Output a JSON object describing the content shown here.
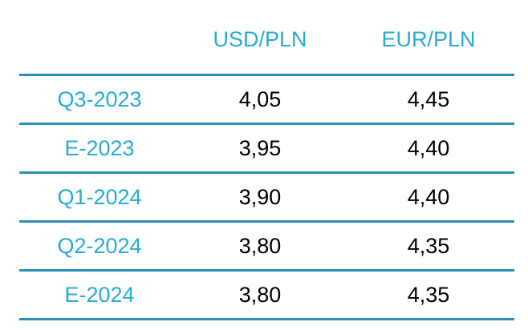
{
  "table": {
    "headers": [
      "",
      "USD/PLN",
      "EUR/PLN"
    ],
    "rows": [
      {
        "label": "Q3-2023",
        "usd_pln": "4,05",
        "eur_pln": "4,45"
      },
      {
        "label": "E-2023",
        "usd_pln": "3,95",
        "eur_pln": "4,40"
      },
      {
        "label": "Q1-2024",
        "usd_pln": "3,90",
        "eur_pln": "4,40"
      },
      {
        "label": "Q2-2024",
        "usd_pln": "3,80",
        "eur_pln": "4,35"
      },
      {
        "label": "E-2024",
        "usd_pln": "3,80",
        "eur_pln": "4,35"
      }
    ]
  },
  "colors": {
    "accent_text": "#29abd4",
    "rule": "#2a8fb8",
    "value_text": "#000000"
  }
}
